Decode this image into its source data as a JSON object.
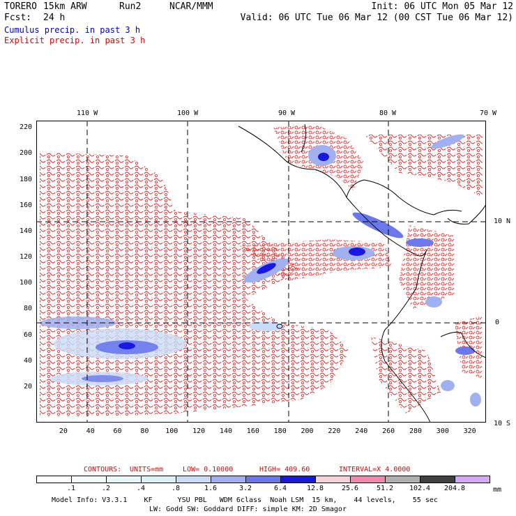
{
  "header": {
    "model": "TORERO",
    "resolution": "15km ARW",
    "run": "Run2",
    "org": "NCAR/MMM",
    "init": "Init: 06 UTC Mon 05 Mar 12",
    "fcst_label": "Fcst:",
    "fcst_value": "24 h",
    "valid": "Valid: 06 UTC Tue 06 Mar 12 (00 CST Tue 06 Mar 12)",
    "legend_cumulus": "Cumulus precip. in past 3 h",
    "legend_explicit": "Explicit precip. in past 3 h"
  },
  "map": {
    "lon_labels": [
      "110 W",
      "100 W",
      "90 W",
      "80 W",
      "70 W"
    ],
    "lat_labels": [
      "10 N",
      "0",
      "10 S"
    ],
    "grid_x_ticks": [
      "20",
      "40",
      "60",
      "80",
      "100",
      "120",
      "140",
      "160",
      "180",
      "200",
      "220",
      "240",
      "260",
      "280",
      "300",
      "320"
    ],
    "grid_y_ticks": [
      "20",
      "40",
      "60",
      "80",
      "100",
      "120",
      "140",
      "160",
      "180",
      "200",
      "220"
    ]
  },
  "contours_info": {
    "label": "CONTOURS:",
    "units": "UNITS=mm",
    "low": "LOW= 0.10000",
    "high": "HIGH= 409.60",
    "interval": "INTERVAL=X 4.0000"
  },
  "colorbar": {
    "unit": "mm",
    "labels": [
      ".1",
      ".2",
      ".4",
      ".8",
      "1.6",
      "3.2",
      "6.4",
      "12.8",
      "25.6",
      "51.2",
      "102.4",
      "204.8"
    ],
    "colors": [
      "#ffffff",
      "#f4fbfb",
      "#e6f8f8",
      "#d8f2f6",
      "#c8dcf8",
      "#a0b0f0",
      "#6a78ec",
      "#1818e0",
      "#f8d0d8",
      "#f088b0",
      "#b0b0b0",
      "#404040",
      "#d8a8f8"
    ]
  },
  "footer": {
    "line1": "Model Info: V3.3.1    KF      YSU PBL   WDM 6class  Noah LSM  15 km,    44 levels,    55 sec",
    "line2": "LW: Godd SW: Goddard DIFF: simple KM: 2D Smagor"
  }
}
